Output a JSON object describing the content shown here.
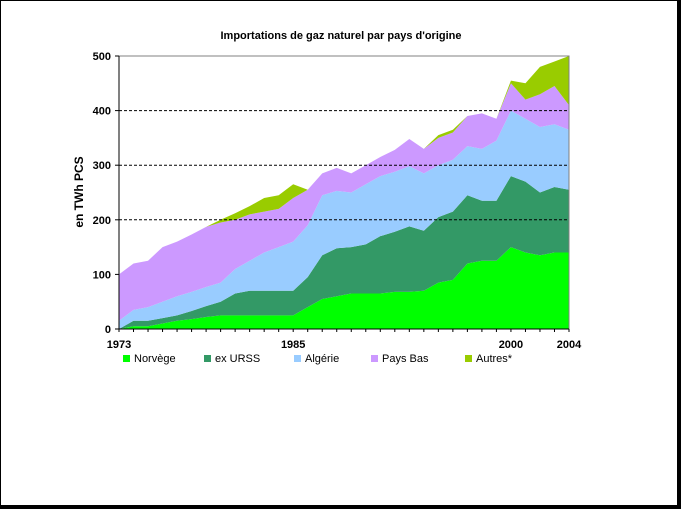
{
  "chart_data": {
    "type": "area",
    "stacked": true,
    "title": "Importations de gaz naturel par pays d'origine",
    "xlabel": "",
    "ylabel": "en TWh PCS",
    "xlim": [
      1973,
      2004
    ],
    "ylim": [
      0,
      500
    ],
    "y_ticks": [
      0,
      100,
      200,
      300,
      400,
      500
    ],
    "x_tick_labels": [
      "1973",
      "1985",
      "2000",
      "2004"
    ],
    "x_tick_values": [
      1973,
      1985,
      2000,
      2004
    ],
    "gridlines": [
      200,
      300,
      400
    ],
    "grid_style": "dashed",
    "legend_position": "bottom",
    "plot_background": "#ffffff",
    "x": [
      1973,
      1974,
      1975,
      1976,
      1977,
      1978,
      1979,
      1980,
      1981,
      1982,
      1983,
      1984,
      1985,
      1986,
      1987,
      1988,
      1989,
      1990,
      1991,
      1992,
      1993,
      1994,
      1995,
      1996,
      1997,
      1998,
      1999,
      2000,
      2001,
      2002,
      2003,
      2004
    ],
    "series": [
      {
        "name": "Norvège",
        "color": "#00ff00",
        "values": [
          0,
          5,
          5,
          10,
          15,
          18,
          22,
          25,
          25,
          25,
          25,
          25,
          25,
          40,
          55,
          60,
          65,
          65,
          65,
          68,
          68,
          70,
          85,
          90,
          120,
          125,
          125,
          150,
          140,
          135,
          140,
          140
        ]
      },
      {
        "name": "ex URSS",
        "color": "#339966",
        "values": [
          0,
          10,
          10,
          10,
          10,
          15,
          20,
          25,
          40,
          45,
          45,
          45,
          45,
          55,
          80,
          88,
          85,
          90,
          105,
          110,
          120,
          110,
          120,
          125,
          125,
          110,
          110,
          130,
          130,
          115,
          120,
          115
        ]
      },
      {
        "name": "Algérie",
        "color": "#99ccff",
        "values": [
          15,
          20,
          25,
          30,
          35,
          35,
          35,
          35,
          45,
          55,
          70,
          80,
          90,
          95,
          110,
          105,
          100,
          110,
          110,
          110,
          110,
          105,
          95,
          95,
          90,
          95,
          110,
          120,
          115,
          120,
          115,
          110
        ]
      },
      {
        "name": "Pays Bas",
        "color": "#cc99ff",
        "values": [
          85,
          85,
          85,
          100,
          100,
          105,
          110,
          110,
          90,
          85,
          75,
          70,
          80,
          65,
          40,
          42,
          35,
          35,
          35,
          40,
          50,
          45,
          50,
          50,
          55,
          65,
          40,
          50,
          35,
          60,
          70,
          45
        ]
      },
      {
        "name": "Autres*",
        "color": "#99cc00",
        "values": [
          0,
          0,
          0,
          0,
          0,
          0,
          0,
          5,
          12,
          15,
          25,
          25,
          25,
          0,
          0,
          0,
          0,
          0,
          0,
          0,
          0,
          0,
          5,
          5,
          0,
          0,
          0,
          5,
          30,
          50,
          45,
          90
        ]
      }
    ]
  }
}
